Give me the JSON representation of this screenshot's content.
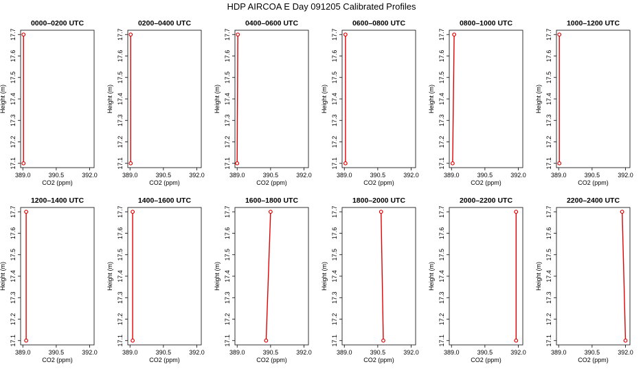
{
  "title": "HDP AIRCOA E  Day 091205  Calibrated Profiles",
  "chart_data": {
    "type": "line",
    "xlabel": "CO2 (ppm)",
    "ylabel": "Height (m)",
    "xlim": [
      388.9,
      392.2
    ],
    "ylim": [
      17.08,
      17.72
    ],
    "xticks": [
      "389.0",
      "390.5",
      "392.0"
    ],
    "yticks": [
      "17.1",
      "17.2",
      "17.3",
      "17.4",
      "17.5",
      "17.6",
      "17.7"
    ],
    "line_color": "#e00000",
    "panels": [
      {
        "title": "0000–0200 UTC",
        "points": [
          [
            389.03,
            17.7
          ],
          [
            389.03,
            17.1
          ]
        ]
      },
      {
        "title": "0200–0400 UTC",
        "points": [
          [
            389.03,
            17.7
          ],
          [
            389.03,
            17.1
          ]
        ]
      },
      {
        "title": "0400–0600 UTC",
        "points": [
          [
            389.03,
            17.7
          ],
          [
            389.0,
            17.1
          ]
        ]
      },
      {
        "title": "0600–0800 UTC",
        "points": [
          [
            389.05,
            17.7
          ],
          [
            389.05,
            17.1
          ]
        ]
      },
      {
        "title": "0800–1000 UTC",
        "points": [
          [
            389.12,
            17.7
          ],
          [
            389.05,
            17.1
          ]
        ]
      },
      {
        "title": "1000–1200 UTC",
        "points": [
          [
            389.03,
            17.7
          ],
          [
            389.03,
            17.1
          ]
        ]
      },
      {
        "title": "1200–1400 UTC",
        "points": [
          [
            389.15,
            17.7
          ],
          [
            389.15,
            17.1
          ]
        ]
      },
      {
        "title": "1400–1600 UTC",
        "points": [
          [
            389.12,
            17.7
          ],
          [
            389.12,
            17.1
          ]
        ]
      },
      {
        "title": "1600–1800 UTC",
        "points": [
          [
            390.5,
            17.7
          ],
          [
            390.3,
            17.1
          ]
        ]
      },
      {
        "title": "1800–2000 UTC",
        "points": [
          [
            390.65,
            17.7
          ],
          [
            390.75,
            17.1
          ]
        ]
      },
      {
        "title": "2000–2200 UTC",
        "points": [
          [
            391.9,
            17.7
          ],
          [
            391.9,
            17.1
          ]
        ]
      },
      {
        "title": "2200–2400 UTC",
        "points": [
          [
            391.85,
            17.7
          ],
          [
            392.0,
            17.1
          ]
        ]
      }
    ]
  }
}
